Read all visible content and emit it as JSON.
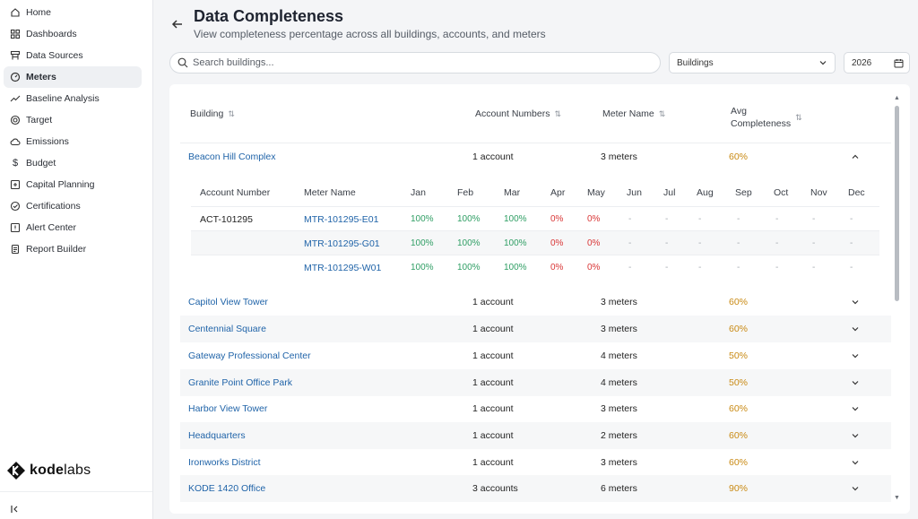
{
  "sidebar": {
    "items": [
      {
        "label": "Home",
        "icon": "home-icon"
      },
      {
        "label": "Dashboards",
        "icon": "dashboard-icon"
      },
      {
        "label": "Data Sources",
        "icon": "data-sources-icon"
      },
      {
        "label": "Meters",
        "icon": "meter-icon",
        "active": true
      },
      {
        "label": "Baseline Analysis",
        "icon": "trend-icon"
      },
      {
        "label": "Target",
        "icon": "target-icon"
      },
      {
        "label": "Emissions",
        "icon": "cloud-icon"
      },
      {
        "label": "Budget",
        "icon": "dollar-icon"
      },
      {
        "label": "Capital Planning",
        "icon": "planning-icon"
      },
      {
        "label": "Certifications",
        "icon": "certificate-icon"
      },
      {
        "label": "Alert Center",
        "icon": "alert-icon"
      },
      {
        "label": "Report Builder",
        "icon": "report-icon"
      }
    ],
    "logo": {
      "text_bold": "kode",
      "text_light": "labs"
    }
  },
  "header": {
    "title": "Data Completeness",
    "subtitle": "View completeness percentage across all buildings, accounts, and meters"
  },
  "filters": {
    "search_placeholder": "Search buildings...",
    "group_by": "Buildings",
    "year": "2026"
  },
  "table": {
    "columns": {
      "building": "Building",
      "account_numbers": "Account Numbers",
      "meter_name": "Meter Name",
      "avg_line1": "Avg",
      "avg_line2": "Completeness"
    },
    "expanded": {
      "building": "Beacon Hill Complex",
      "accounts": "1 account",
      "meters": "3 meters",
      "avg": "60%",
      "sub_columns": {
        "account_number": "Account Number",
        "meter_name": "Meter Name"
      },
      "months": [
        "Jan",
        "Feb",
        "Mar",
        "Apr",
        "May",
        "Jun",
        "Jul",
        "Aug",
        "Sep",
        "Oct",
        "Nov",
        "Dec"
      ],
      "account": "ACT-101295",
      "meter_rows": [
        {
          "meter": "MTR-101295-E01",
          "values": [
            "100%",
            "100%",
            "100%",
            "0%",
            "0%",
            "-",
            "-",
            "-",
            "-",
            "-",
            "-",
            "-"
          ]
        },
        {
          "meter": "MTR-101295-G01",
          "values": [
            "100%",
            "100%",
            "100%",
            "0%",
            "0%",
            "-",
            "-",
            "-",
            "-",
            "-",
            "-",
            "-"
          ]
        },
        {
          "meter": "MTR-101295-W01",
          "values": [
            "100%",
            "100%",
            "100%",
            "0%",
            "0%",
            "-",
            "-",
            "-",
            "-",
            "-",
            "-",
            "-"
          ]
        }
      ]
    },
    "rows": [
      {
        "building": "Capitol View Tower",
        "accounts": "1 account",
        "meters": "3 meters",
        "avg": "60%"
      },
      {
        "building": "Centennial Square",
        "accounts": "1 account",
        "meters": "3 meters",
        "avg": "60%"
      },
      {
        "building": "Gateway Professional Center",
        "accounts": "1 account",
        "meters": "4 meters",
        "avg": "50%"
      },
      {
        "building": "Granite Point Office Park",
        "accounts": "1 account",
        "meters": "4 meters",
        "avg": "50%"
      },
      {
        "building": "Harbor View Tower",
        "accounts": "1 account",
        "meters": "3 meters",
        "avg": "60%"
      },
      {
        "building": "Headquarters",
        "accounts": "1 account",
        "meters": "2 meters",
        "avg": "60%"
      },
      {
        "building": "Ironworks District",
        "accounts": "1 account",
        "meters": "3 meters",
        "avg": "60%"
      },
      {
        "building": "KODE 1420 Office",
        "accounts": "3 accounts",
        "meters": "6 meters",
        "avg": "90%"
      }
    ]
  },
  "colors": {
    "link": "#1f63a8",
    "good": "#2f9e64",
    "bad": "#d93636",
    "warn": "#c98a14"
  }
}
